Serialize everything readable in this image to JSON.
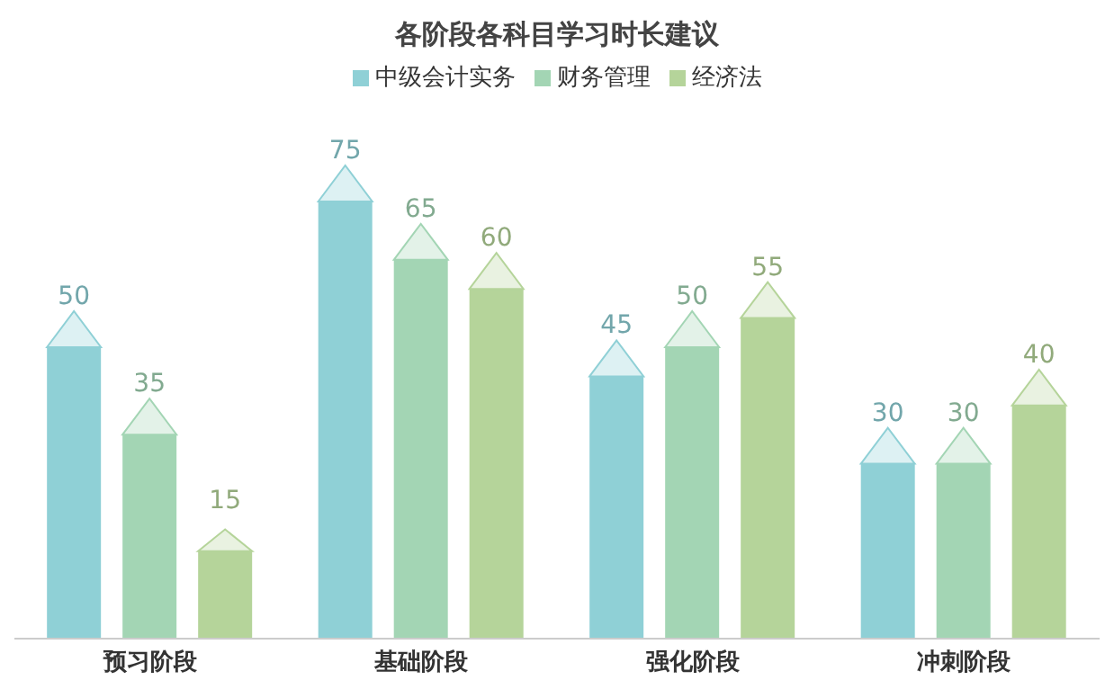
{
  "chart_data": {
    "type": "bar",
    "title": "各阶段各科目学习时长建议",
    "categories": [
      "预习阶段",
      "基础阶段",
      "强化阶段",
      "冲刺阶段"
    ],
    "series": [
      {
        "name": "中级会计实务",
        "color": "#8fd0d6",
        "values": [
          50,
          75,
          45,
          30
        ]
      },
      {
        "name": "财务管理",
        "color": "#a3d5b4",
        "values": [
          35,
          65,
          50,
          30
        ]
      },
      {
        "name": "经济法",
        "color": "#b5d49a",
        "values": [
          15,
          60,
          55,
          40
        ]
      }
    ],
    "data_labels": true,
    "legend": "top",
    "grid": false
  }
}
